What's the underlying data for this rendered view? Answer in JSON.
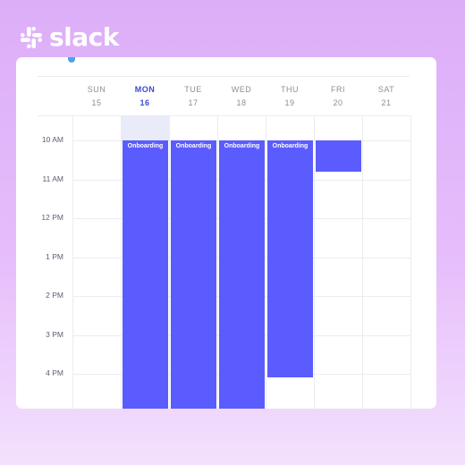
{
  "brand": {
    "wordmark": "slack",
    "logo_icon": "slack-hash-icon",
    "colors": {
      "event": "#5b5cfd",
      "today": "#3b49d6"
    }
  },
  "calendar": {
    "days": [
      {
        "name": "SUN",
        "date": "15"
      },
      {
        "name": "MON",
        "date": "16",
        "today": true
      },
      {
        "name": "TUE",
        "date": "17"
      },
      {
        "name": "WED",
        "date": "18"
      },
      {
        "name": "THU",
        "date": "19"
      },
      {
        "name": "FRI",
        "date": "20"
      },
      {
        "name": "SAT",
        "date": "21"
      }
    ],
    "times": [
      "10 AM",
      "11 AM",
      "12 PM",
      "1 PM",
      "2 PM",
      "3 PM",
      "4 PM"
    ],
    "events": [
      {
        "day": 1,
        "label": "Onboarding",
        "start": "10 AM",
        "end_hour": 16.95
      },
      {
        "day": 2,
        "label": "Onboarding",
        "start": "10 AM",
        "end_hour": 16.95
      },
      {
        "day": 3,
        "label": "Onboarding",
        "start": "10 AM",
        "end_hour": 16.95
      },
      {
        "day": 4,
        "label": "Onboarding",
        "start": "10 AM",
        "end_hour": 16.1
      },
      {
        "day": 5,
        "label": "",
        "start": "10 AM",
        "end_hour": 10.8
      }
    ]
  }
}
